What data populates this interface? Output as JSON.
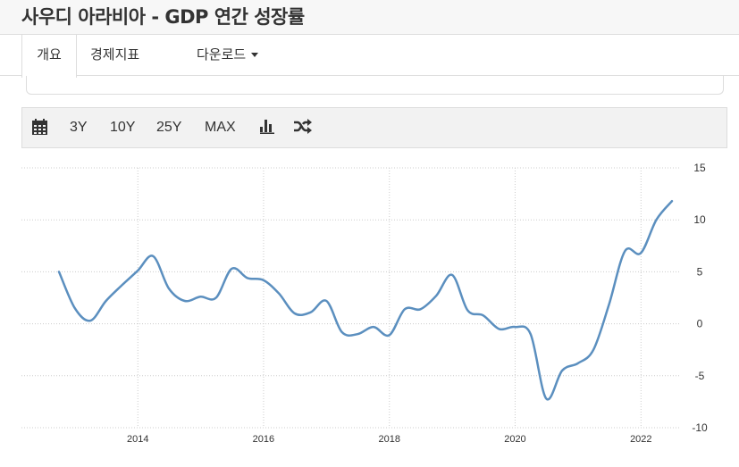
{
  "header": {
    "title": "사우디 아라비아 - GDP 연간 성장률"
  },
  "tabs": [
    {
      "label": "개요",
      "active": true
    },
    {
      "label": "경제지표",
      "active": false
    },
    {
      "label": "다운로드",
      "active": false,
      "dropdown": true
    }
  ],
  "toolbar": {
    "calendar_icon": "calendar-icon",
    "range_3y": "3Y",
    "range_10y": "10Y",
    "range_25y": "25Y",
    "range_max": "MAX",
    "bar_chart_icon": "bar-chart-icon",
    "shuffle_icon": "shuffle-icon"
  },
  "colors": {
    "line": "#5b8fbf",
    "grid": "#cccccc",
    "toolbar_bg": "#f2f2f2"
  },
  "chart_data": {
    "type": "line",
    "title": "",
    "xlabel": "",
    "ylabel": "",
    "grid": true,
    "y_axis_side": "right",
    "ylim": [
      -10,
      15
    ],
    "y_ticks": [
      15,
      10,
      5,
      0,
      -5,
      -10
    ],
    "xlim": [
      "2012-09-30",
      "2022-06-30"
    ],
    "x_ticks": [
      "2014",
      "2016",
      "2018",
      "2020",
      "2022"
    ],
    "series": [
      {
        "values": [
          {
            "x": "2012-09-30",
            "y": 5.0
          },
          {
            "x": "2012-12-31",
            "y": 1.5
          },
          {
            "x": "2013-03-31",
            "y": 0.3
          },
          {
            "x": "2013-06-30",
            "y": 2.2
          },
          {
            "x": "2013-09-30",
            "y": 3.7
          },
          {
            "x": "2013-12-31",
            "y": 5.1
          },
          {
            "x": "2014-03-31",
            "y": 6.5
          },
          {
            "x": "2014-06-30",
            "y": 3.4
          },
          {
            "x": "2014-09-30",
            "y": 2.2
          },
          {
            "x": "2014-12-31",
            "y": 2.6
          },
          {
            "x": "2015-03-31",
            "y": 2.5
          },
          {
            "x": "2015-06-30",
            "y": 5.3
          },
          {
            "x": "2015-09-30",
            "y": 4.4
          },
          {
            "x": "2015-12-31",
            "y": 4.2
          },
          {
            "x": "2016-03-31",
            "y": 2.9
          },
          {
            "x": "2016-06-30",
            "y": 1.0
          },
          {
            "x": "2016-09-30",
            "y": 1.1
          },
          {
            "x": "2016-12-31",
            "y": 2.2
          },
          {
            "x": "2017-03-31",
            "y": -0.8
          },
          {
            "x": "2017-06-30",
            "y": -1.0
          },
          {
            "x": "2017-09-30",
            "y": -0.3
          },
          {
            "x": "2017-12-31",
            "y": -1.1
          },
          {
            "x": "2018-03-31",
            "y": 1.4
          },
          {
            "x": "2018-06-30",
            "y": 1.4
          },
          {
            "x": "2018-09-30",
            "y": 2.7
          },
          {
            "x": "2018-12-31",
            "y": 4.7
          },
          {
            "x": "2019-03-31",
            "y": 1.3
          },
          {
            "x": "2019-06-30",
            "y": 0.8
          },
          {
            "x": "2019-09-30",
            "y": -0.5
          },
          {
            "x": "2019-12-31",
            "y": -0.3
          },
          {
            "x": "2020-03-31",
            "y": -1.0
          },
          {
            "x": "2020-06-30",
            "y": -7.2
          },
          {
            "x": "2020-09-30",
            "y": -4.5
          },
          {
            "x": "2020-12-31",
            "y": -3.8
          },
          {
            "x": "2021-03-31",
            "y": -2.5
          },
          {
            "x": "2021-06-30",
            "y": 1.9
          },
          {
            "x": "2021-09-30",
            "y": 7.0
          },
          {
            "x": "2021-12-31",
            "y": 6.8
          },
          {
            "x": "2022-03-31",
            "y": 10.0
          },
          {
            "x": "2022-06-30",
            "y": 11.8
          }
        ]
      }
    ]
  }
}
